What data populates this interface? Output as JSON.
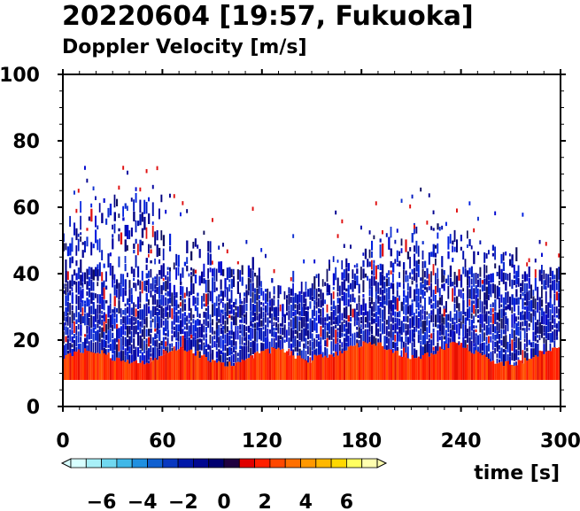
{
  "chart_data": {
    "type": "heatmap",
    "title": "20220604 [19:57, Fukuoka]",
    "subtitle": "Doppler Velocity [m/s]",
    "xlabel": "time [s]",
    "ylabel": "",
    "xlim": [
      0,
      300
    ],
    "ylim": [
      0,
      100
    ],
    "x_ticks": [
      "0",
      "60",
      "120",
      "180",
      "240",
      "300"
    ],
    "y_ticks": [
      "0",
      "20",
      "40",
      "60",
      "80",
      "100"
    ],
    "colorbar": {
      "range": [
        -7.5,
        7.5
      ],
      "tick_labels": [
        "−6",
        "−4",
        "−2",
        "0",
        "2",
        "4",
        "6"
      ],
      "tick_values": [
        -6,
        -4,
        -2,
        0,
        2,
        4,
        6
      ],
      "colors": [
        "#d8ffff",
        "#a8f0f8",
        "#70d8f0",
        "#40b8e8",
        "#2090e0",
        "#1060d0",
        "#0838c0",
        "#0018a8",
        "#000890",
        "#000070",
        "#200040",
        "#e00000",
        "#ff2000",
        "#ff4800",
        "#ff7000",
        "#ff9800",
        "#ffb800",
        "#ffd800",
        "#ffff60",
        "#ffffb0"
      ]
    },
    "data_description": {
      "echo_bottom_height": 8,
      "negative_velocity_layer": [
        8,
        60
      ],
      "positive_velocity_layer": [
        8,
        14
      ],
      "max_echo_height": 76
    }
  }
}
